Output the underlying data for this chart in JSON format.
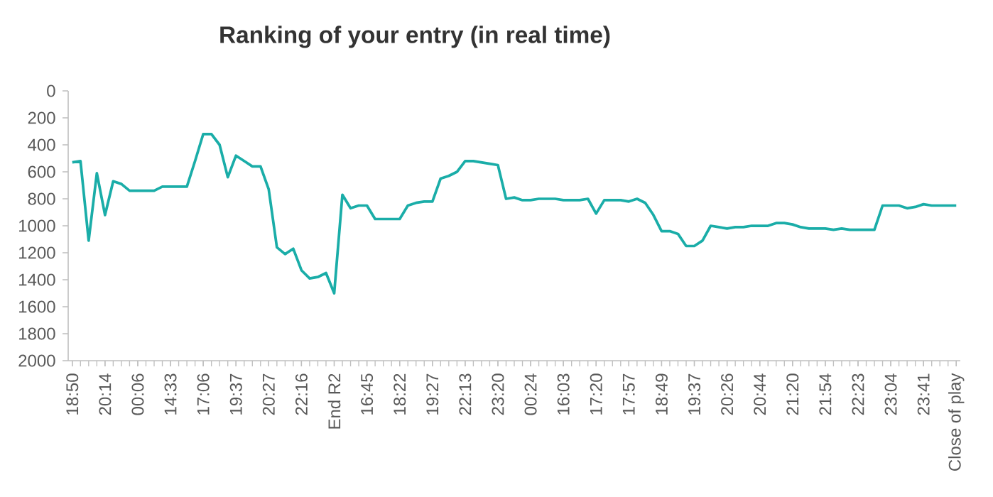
{
  "chart_data": {
    "type": "line",
    "title": "Ranking of your entry (in real time)",
    "categories": [
      "18:50",
      null,
      null,
      null,
      "20:14",
      null,
      null,
      null,
      "00:06",
      null,
      null,
      null,
      "14:33",
      null,
      null,
      null,
      "17:06",
      null,
      null,
      null,
      "19:37",
      null,
      null,
      null,
      "20:27",
      null,
      null,
      null,
      "22:16",
      null,
      null,
      null,
      "End R2",
      null,
      null,
      null,
      "16:45",
      null,
      null,
      null,
      "18:22",
      null,
      null,
      null,
      "19:27",
      null,
      null,
      null,
      "22:13",
      null,
      null,
      null,
      "23:20",
      null,
      null,
      null,
      "00:24",
      null,
      null,
      null,
      "16:03",
      null,
      null,
      null,
      "17:20",
      null,
      null,
      null,
      "17:57",
      null,
      null,
      null,
      "18:49",
      null,
      null,
      null,
      "19:37",
      null,
      null,
      null,
      "20:26",
      null,
      null,
      null,
      "20:44",
      null,
      null,
      null,
      "21:20",
      null,
      null,
      null,
      "21:54",
      null,
      null,
      null,
      "22:23",
      null,
      null,
      null,
      "23:04",
      null,
      null,
      null,
      "23:41",
      null,
      null,
      null,
      "Close of play"
    ],
    "series": [
      {
        "color": "#1aada8",
        "values": [
          530,
          520,
          1110,
          610,
          920,
          670,
          690,
          740,
          740,
          740,
          740,
          710,
          710,
          710,
          710,
          520,
          320,
          320,
          400,
          640,
          480,
          520,
          560,
          560,
          730,
          1160,
          1210,
          1170,
          1330,
          1390,
          1380,
          1350,
          1500,
          770,
          870,
          850,
          850,
          950,
          950,
          950,
          950,
          850,
          830,
          820,
          820,
          650,
          630,
          600,
          520,
          520,
          530,
          540,
          550,
          800,
          790,
          810,
          810,
          800,
          800,
          800,
          810,
          810,
          810,
          800,
          910,
          810,
          810,
          810,
          820,
          800,
          830,
          920,
          1040,
          1040,
          1060,
          1150,
          1150,
          1110,
          1000,
          1010,
          1020,
          1010,
          1010,
          1000,
          1000,
          1000,
          980,
          980,
          990,
          1010,
          1020,
          1020,
          1020,
          1030,
          1020,
          1030,
          1030,
          1030,
          1030,
          850,
          850,
          850,
          870,
          860,
          840,
          850,
          850,
          850,
          850
        ]
      }
    ],
    "ylim": [
      2000,
      0
    ],
    "yticks": [
      0,
      200,
      400,
      600,
      800,
      1000,
      1200,
      1400,
      1600,
      1800,
      2000
    ],
    "grid": false,
    "marker": "none",
    "line_style": "solid"
  }
}
